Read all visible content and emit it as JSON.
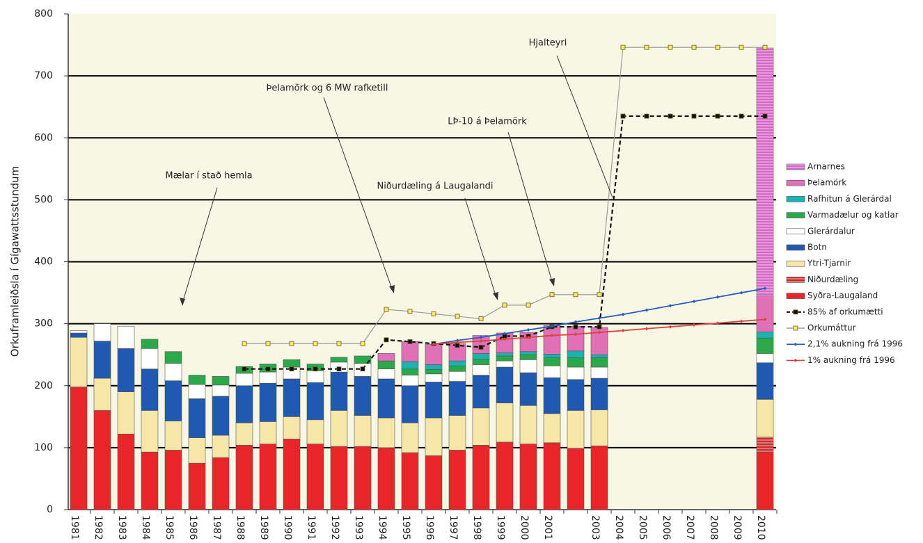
{
  "chart_data": {
    "type": "bar",
    "stacked": true,
    "y_label": "Orkuframleiðsla í Gígawattsstundum",
    "categories": [
      "1981",
      "1982",
      "1983",
      "1984",
      "1985",
      "1986",
      "1987",
      "1988",
      "1989",
      "1990",
      "1991",
      "1992",
      "1993",
      "1994",
      "1995",
      "1996",
      "1997",
      "1998",
      "1999",
      "2000",
      "2001",
      null,
      "2003",
      "2004",
      "2005",
      "2006",
      "2007",
      "2008",
      "2009",
      "2010"
    ],
    "ylim": [
      0,
      800
    ],
    "yticks": [
      0,
      100,
      200,
      300,
      400,
      500,
      600,
      700,
      800
    ],
    "grid": true,
    "legend": "right",
    "series": [
      {
        "name": "Syðra-Laugaland",
        "type": "bar",
        "color": "#e8262a",
        "values": [
          198,
          160,
          122,
          93,
          96,
          75,
          84,
          104,
          106,
          114,
          106,
          102,
          102,
          100,
          92,
          87,
          96,
          104,
          109,
          106,
          108,
          99,
          103,
          null,
          null,
          null,
          null,
          null,
          null,
          93
        ]
      },
      {
        "name": "Niðurdæling",
        "type": "bar",
        "color": "#c9302c",
        "hatch": true,
        "values": [
          0,
          0,
          0,
          0,
          0,
          0,
          0,
          0,
          0,
          0,
          0,
          0,
          0,
          0,
          0,
          0,
          0,
          0,
          0,
          0,
          0,
          0,
          0,
          null,
          null,
          null,
          null,
          null,
          null,
          24
        ]
      },
      {
        "name": "Ytri-Tjarnir",
        "type": "bar",
        "color": "#f6e7a8",
        "values": [
          80,
          52,
          68,
          67,
          47,
          41,
          36,
          36,
          36,
          36,
          39,
          58,
          50,
          48,
          48,
          61,
          56,
          60,
          63,
          62,
          47,
          61,
          58,
          null,
          null,
          null,
          null,
          null,
          null,
          61
        ]
      },
      {
        "name": "Botn",
        "type": "bar",
        "color": "#1f5ab0",
        "values": [
          7,
          60,
          70,
          67,
          65,
          63,
          63,
          60,
          62,
          61,
          60,
          62,
          63,
          63,
          60,
          58,
          55,
          53,
          58,
          53,
          58,
          50,
          51,
          null,
          null,
          null,
          null,
          null,
          null,
          59
        ]
      },
      {
        "name": "Glerárdalur",
        "type": "bar",
        "color": "#ffffff",
        "values": [
          4,
          28,
          36,
          33,
          28,
          23,
          18,
          20,
          18,
          19,
          19,
          16,
          21,
          16,
          17,
          13,
          16,
          17,
          10,
          21,
          19,
          20,
          18,
          null,
          null,
          null,
          null,
          null,
          null,
          15
        ]
      },
      {
        "name": "Varmadælur og katlar",
        "type": "bar",
        "color": "#2ba84a",
        "values": [
          0,
          0,
          0,
          15,
          19,
          15,
          14,
          11,
          13,
          12,
          11,
          8,
          12,
          13,
          10,
          7,
          9,
          9,
          8,
          8,
          13,
          15,
          15,
          null,
          null,
          null,
          null,
          null,
          null,
          25
        ]
      },
      {
        "name": "Rafhitun á Glerárdal",
        "type": "bar",
        "color": "#1ab3b0",
        "values": [
          0,
          0,
          0,
          0,
          0,
          0,
          0,
          0,
          0,
          0,
          0,
          0,
          0,
          0,
          12,
          8,
          8,
          9,
          5,
          5,
          6,
          11,
          5,
          null,
          null,
          null,
          null,
          null,
          null,
          10
        ]
      },
      {
        "name": "Þelamörk",
        "type": "bar",
        "color": "#e070b8",
        "values": [
          0,
          0,
          0,
          0,
          0,
          0,
          0,
          0,
          0,
          0,
          0,
          0,
          0,
          12,
          32,
          33,
          28,
          29,
          32,
          31,
          46,
          40,
          44,
          null,
          null,
          null,
          null,
          null,
          null,
          58
        ]
      },
      {
        "name": "Arnarnes",
        "type": "bar",
        "color": "#d768c8",
        "hatch": true,
        "values": [
          0,
          0,
          0,
          0,
          0,
          0,
          0,
          0,
          0,
          0,
          0,
          0,
          0,
          0,
          0,
          0,
          0,
          0,
          0,
          0,
          0,
          0,
          0,
          null,
          null,
          null,
          null,
          null,
          null,
          400
        ]
      },
      {
        "name": "85% af orkumætti",
        "type": "line",
        "color": "#111111",
        "dash": true,
        "marker": "square",
        "marker_color": "#111111",
        "values": [
          null,
          null,
          null,
          null,
          null,
          null,
          null,
          227,
          227,
          227,
          227,
          227,
          227,
          274,
          271,
          268,
          265,
          262,
          280,
          280,
          295,
          295,
          295,
          635,
          635,
          635,
          635,
          635,
          635,
          635
        ]
      },
      {
        "name": "Orkumáttur",
        "type": "line",
        "color": "#9a9a9a",
        "marker": "square",
        "marker_color": "#f8e870",
        "values": [
          null,
          null,
          null,
          null,
          null,
          null,
          null,
          268,
          268,
          268,
          268,
          268,
          268,
          323,
          320,
          316,
          312,
          308,
          330,
          330,
          347,
          347,
          347,
          746,
          746,
          746,
          746,
          746,
          746,
          746
        ]
      },
      {
        "name": "2,1% aukning frá 1996",
        "type": "line",
        "color": "#2a5cc0",
        "marker": "diamond",
        "marker_color": "#2a5cc0",
        "values": [
          null,
          null,
          null,
          null,
          null,
          null,
          null,
          null,
          null,
          null,
          null,
          null,
          null,
          null,
          null,
          267,
          273,
          278,
          284,
          290,
          296,
          303,
          309,
          315,
          322,
          329,
          336,
          343,
          350,
          357
        ]
      },
      {
        "name": "1% aukning frá 1996",
        "type": "line",
        "color": "#e0403a",
        "marker": "diamond",
        "marker_color": "#e0403a",
        "values": [
          null,
          null,
          null,
          null,
          null,
          null,
          null,
          null,
          null,
          null,
          null,
          null,
          null,
          null,
          null,
          267,
          270,
          272,
          275,
          278,
          281,
          283,
          286,
          289,
          292,
          295,
          298,
          301,
          304,
          307
        ]
      }
    ],
    "annotations": [
      "Mælar í stað hemla",
      "Þelamörk og 6 MW rafketill",
      "Niðurdæling á Laugalandi",
      "LÞ-10 á Þelamörk",
      "Hjalteyri"
    ]
  }
}
